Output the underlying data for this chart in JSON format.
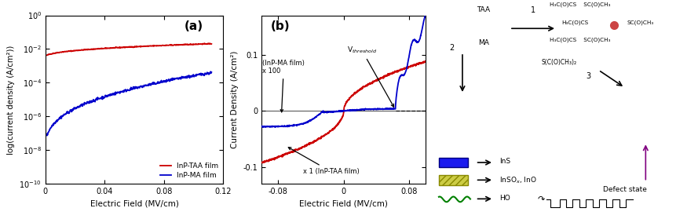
{
  "panel_a": {
    "title": "(a)",
    "xlabel": "Electric Field (MV/cm)",
    "ylabel": "log(current density (A/cm²))",
    "xlim": [
      0,
      0.12
    ],
    "taa_color": "#cc0000",
    "ma_color": "#0000cc",
    "legend_taa": "InP-TAA film",
    "legend_ma": "InP-MA film"
  },
  "panel_b": {
    "title": "(b)",
    "xlabel": "Electric Field (MV/cm)",
    "ylabel": "Current Density (A/cm²)",
    "xlim": [
      -0.1,
      0.1
    ],
    "ylim": [
      -0.13,
      0.17
    ],
    "taa_color": "#cc0000",
    "ma_color": "#0000cc",
    "annotation_ma": "(InP-MA film)\nx 100",
    "annotation_taa": "x 1 (InP-TAA film)",
    "annotation_vth": "V$_{threshold}$"
  },
  "schematic": {
    "taa_label": "TAA",
    "ma_label": "MA",
    "step1": "1",
    "step2": "2",
    "step3": "3",
    "s_formula": "S(C(O)CH₃)₂",
    "chem1": "H₃C(O)CS    SC(O)CH₃",
    "chem2_left": "H₃C(O)CS",
    "chem2_right": "SC(O)CH₃",
    "chem3": "H₃C(O)CS    SC(O)CH₃",
    "ins_label": "InS",
    "inso_label": "InSO$_x$, InO",
    "defect_label": "Defect state",
    "ho_formula": "HO—(CH₂)ₙ—"
  }
}
